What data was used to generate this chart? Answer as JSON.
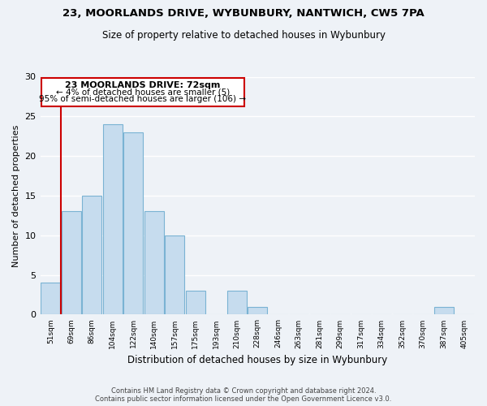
{
  "title": "23, MOORLANDS DRIVE, WYBUNBURY, NANTWICH, CW5 7PA",
  "subtitle": "Size of property relative to detached houses in Wybunbury",
  "xlabel": "Distribution of detached houses by size in Wybunbury",
  "ylabel": "Number of detached properties",
  "bin_labels": [
    "51sqm",
    "69sqm",
    "86sqm",
    "104sqm",
    "122sqm",
    "140sqm",
    "157sqm",
    "175sqm",
    "193sqm",
    "210sqm",
    "228sqm",
    "246sqm",
    "263sqm",
    "281sqm",
    "299sqm",
    "317sqm",
    "334sqm",
    "352sqm",
    "370sqm",
    "387sqm",
    "405sqm"
  ],
  "bar_heights": [
    4,
    13,
    15,
    24,
    23,
    13,
    10,
    3,
    0,
    3,
    1,
    0,
    0,
    0,
    0,
    0,
    0,
    0,
    0,
    1,
    0
  ],
  "bar_color": "#c6dcee",
  "bar_edge_color": "#7ab3d3",
  "highlight_color": "#cc0000",
  "ylim": [
    0,
    30
  ],
  "yticks": [
    0,
    5,
    10,
    15,
    20,
    25,
    30
  ],
  "annotation_title": "23 MOORLANDS DRIVE: 72sqm",
  "annotation_line1": "← 4% of detached houses are smaller (5)",
  "annotation_line2": "95% of semi-detached houses are larger (106) →",
  "annotation_box_color": "#ffffff",
  "annotation_box_edge": "#cc0000",
  "footer_line1": "Contains HM Land Registry data © Crown copyright and database right 2024.",
  "footer_line2": "Contains public sector information licensed under the Open Government Licence v3.0.",
  "background_color": "#eef2f7",
  "grid_color": "#ffffff"
}
